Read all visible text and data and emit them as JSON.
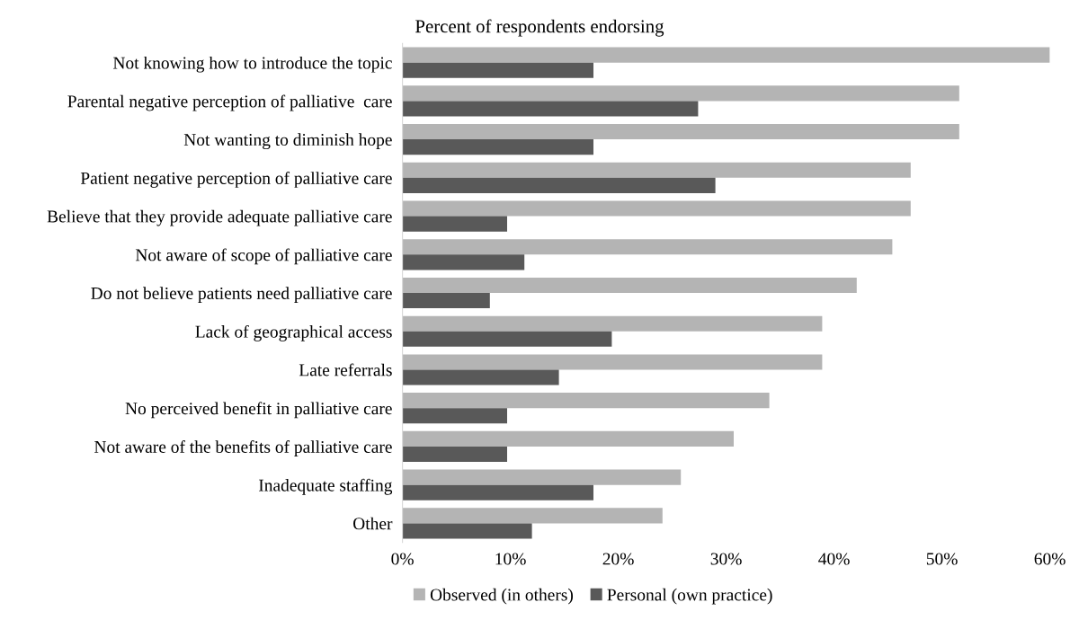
{
  "chart_data": {
    "type": "bar",
    "orientation": "horizontal",
    "title": "Percent of respondents endorsing",
    "categories": [
      "Not knowing how to introduce the topic",
      "Parental negative perception of palliative  care",
      "Not wanting to diminish hope",
      "Patient negative perception of palliative care",
      "Believe that they provide adequate palliative care",
      "Not aware of scope of palliative care",
      "Do not believe patients need palliative care",
      "Lack of geographical access",
      "Late referrals",
      "No perceived benefit in palliative care",
      "Not aware of the benefits of palliative care",
      "Inadequate staffing",
      "Other"
    ],
    "series": [
      {
        "name": "Observed (in others)",
        "color": "#b4b4b4",
        "values": [
          60,
          51.6,
          51.6,
          47.1,
          47.1,
          45.4,
          42.1,
          38.9,
          38.9,
          34.0,
          30.7,
          25.8,
          24.1
        ]
      },
      {
        "name": "Personal (own practice)",
        "color": "#595959",
        "values": [
          17.7,
          27.4,
          17.7,
          29.0,
          9.7,
          11.3,
          8.1,
          19.4,
          14.5,
          9.7,
          9.7,
          17.7,
          12.0
        ]
      }
    ],
    "xlim": [
      0,
      60
    ],
    "xticks": [
      {
        "value": 0,
        "label": "0%"
      },
      {
        "value": 10,
        "label": "10%"
      },
      {
        "value": 20,
        "label": "20%"
      },
      {
        "value": 30,
        "label": "30%"
      },
      {
        "value": 40,
        "label": "40%"
      },
      {
        "value": 50,
        "label": "50%"
      },
      {
        "value": 60,
        "label": "60%"
      }
    ],
    "grid": false,
    "legend": "bottom"
  }
}
